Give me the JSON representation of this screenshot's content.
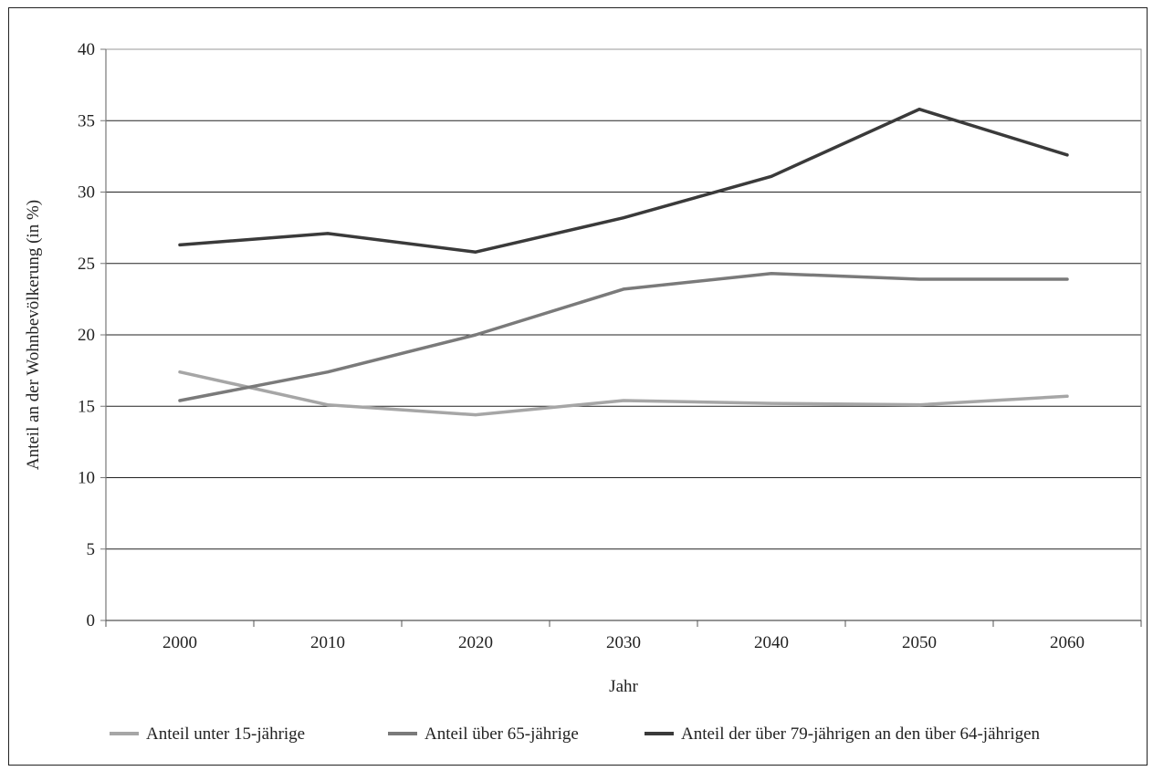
{
  "chart_data": {
    "type": "line",
    "xlabel": "Jahr",
    "ylabel": "Anteil an der Wohnbevölkerung (in %)",
    "ylim": [
      0,
      40
    ],
    "yticks": [
      0,
      5,
      10,
      15,
      20,
      25,
      30,
      35,
      40
    ],
    "categories": [
      "2000",
      "2010",
      "2020",
      "2030",
      "2040",
      "2050",
      "2060"
    ],
    "grid": "horizontal",
    "legend_position": "bottom",
    "series": [
      {
        "name": "Anteil unter 15-jährige",
        "color": "#a6a6a6",
        "values": [
          17.4,
          15.1,
          14.4,
          15.4,
          15.2,
          15.1,
          15.7
        ]
      },
      {
        "name": "Anteil über 65-jährige",
        "color": "#7a7a7a",
        "values": [
          15.4,
          17.4,
          20.0,
          23.2,
          24.3,
          23.9,
          23.9
        ]
      },
      {
        "name": "Anteil der über 79-jährigen an den über 64-jährigen",
        "color": "#3a3a3a",
        "values": [
          26.3,
          27.1,
          25.8,
          28.2,
          31.1,
          35.8,
          32.6
        ]
      }
    ]
  }
}
